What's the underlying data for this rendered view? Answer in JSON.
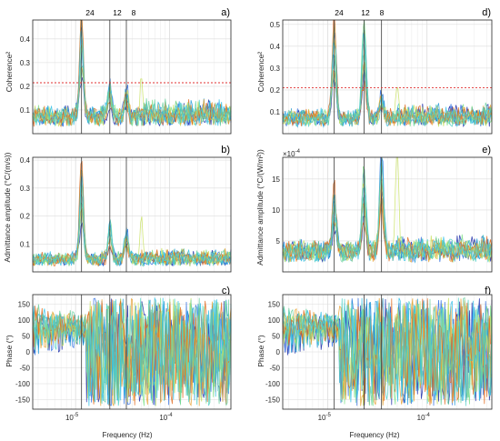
{
  "figure": {
    "xlabel": "Frequency (Hz)",
    "peak_labels": [
      "24",
      "12",
      "8"
    ],
    "peak_freqs": [
      1.15741e-05,
      2.31481e-05,
      3.47222e-05
    ],
    "series_colors": [
      "#1a2aa8",
      "#2f6fe0",
      "#1f9ad8",
      "#4fd0c8",
      "#7fe08a",
      "#c8e060",
      "#e8a030",
      "#e06a1e",
      "#30c0e8",
      "#6ad0a0"
    ],
    "threshold_color": "#e03030"
  },
  "chart_data": [
    {
      "panel": "a)",
      "type": "line",
      "ylabel": "Coherence²",
      "yticks": [
        "0.1",
        "0.2",
        "0.3",
        "0.4"
      ],
      "ytick_values": [
        0.1,
        0.2,
        0.3,
        0.4
      ],
      "ylim": [
        0,
        0.48
      ],
      "xscale": "log",
      "xlim": [
        3.5e-06,
        0.00045
      ],
      "threshold": 0.215,
      "show_peak_labels": true,
      "peaks": [
        0.46,
        0.16,
        0.13
      ],
      "baseline": 0.06,
      "noise": 0.045,
      "seed": 3
    },
    {
      "panel": "b)",
      "type": "line",
      "ylabel": "Admittance amplitude (°C/(m/s))",
      "yticks": [
        "0.1",
        "0.2",
        "0.3",
        "0.4"
      ],
      "ytick_values": [
        0.1,
        0.2,
        0.3,
        0.4
      ],
      "ylim": [
        0,
        0.41
      ],
      "xscale": "log",
      "xlim": [
        3.5e-06,
        0.00045
      ],
      "peaks": [
        0.39,
        0.15,
        0.11
      ],
      "baseline": 0.04,
      "noise": 0.02,
      "seed": 7
    },
    {
      "panel": "c)",
      "type": "line",
      "ylabel": "Phase (°)",
      "yticks": [
        "-150",
        "-100",
        "-50",
        "0",
        "50",
        "100",
        "150"
      ],
      "ytick_values": [
        -150,
        -100,
        -50,
        0,
        50,
        100,
        150
      ],
      "ylim": [
        -180,
        180
      ],
      "xscale": "log",
      "xlim": [
        3.5e-06,
        0.00045
      ],
      "xticks": [
        "10",
        "10"
      ],
      "xtick_exponents": [
        "-5",
        "-4"
      ],
      "xtick_values": [
        1e-05,
        0.0001
      ],
      "phase": true,
      "seed": 11
    },
    {
      "panel": "d)",
      "type": "line",
      "ylabel": "Coherence²",
      "yticks": [
        "0.1",
        "0.2",
        "0.3",
        "0.4",
        "0.5"
      ],
      "ytick_values": [
        0.1,
        0.2,
        0.3,
        0.4,
        0.5
      ],
      "ylim": [
        0,
        0.52
      ],
      "xscale": "log",
      "xlim": [
        3.5e-06,
        0.00045
      ],
      "threshold": 0.21,
      "show_peak_labels": true,
      "peaks": [
        0.5,
        0.5,
        0.12
      ],
      "baseline": 0.06,
      "noise": 0.04,
      "seed": 5
    },
    {
      "panel": "e)",
      "type": "line",
      "ylabel": "Admittance amplitude (°C/(W/m²))",
      "multiplier": "×10",
      "multiplier_exp": "-4",
      "yticks": [
        "5",
        "10",
        "15"
      ],
      "ytick_values": [
        5,
        10,
        15
      ],
      "ylim": [
        0,
        18.5
      ],
      "xscale": "log",
      "xlim": [
        3.5e-06,
        0.00045
      ],
      "peaks": [
        11,
        14,
        18
      ],
      "baseline": 3,
      "noise": 1.2,
      "seed": 9
    },
    {
      "panel": "f)",
      "type": "line",
      "ylabel": "Phase (°)",
      "yticks": [
        "-150",
        "-100",
        "-50",
        "0",
        "50",
        "100",
        "150"
      ],
      "ytick_values": [
        -150,
        -100,
        -50,
        0,
        50,
        100,
        150
      ],
      "ylim": [
        -180,
        180
      ],
      "xscale": "log",
      "xlim": [
        3.5e-06,
        0.00045
      ],
      "xticks": [
        "10",
        "10"
      ],
      "xtick_exponents": [
        "-5",
        "-4"
      ],
      "xtick_values": [
        1e-05,
        0.0001
      ],
      "phase": true,
      "seed": 13
    }
  ]
}
